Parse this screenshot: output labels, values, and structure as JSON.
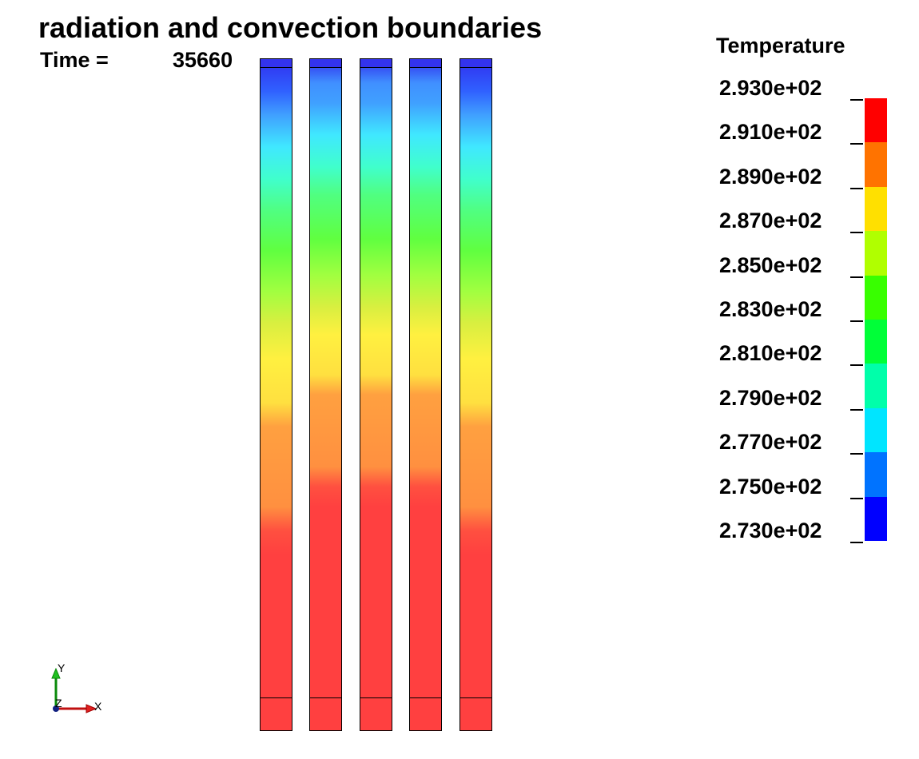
{
  "title": "radiation and convection boundaries",
  "time": {
    "label": "Time =",
    "value": "35660"
  },
  "legend": {
    "title": "Temperature",
    "labels": [
      "2.930e+02",
      "2.910e+02",
      "2.890e+02",
      "2.870e+02",
      "2.850e+02",
      "2.830e+02",
      "2.810e+02",
      "2.790e+02",
      "2.770e+02",
      "2.750e+02",
      "2.730e+02"
    ],
    "colors": [
      "#ff0000",
      "#ff7300",
      "#ffe000",
      "#b0ff00",
      "#38ff00",
      "#00ff38",
      "#00ffaa",
      "#00e5ff",
      "#0073ff",
      "#0000ff"
    ]
  },
  "axes": {
    "x": "X",
    "y": "Y",
    "z": "Z"
  },
  "columns": [
    {
      "id": "col-1"
    },
    {
      "id": "col-2"
    },
    {
      "id": "col-3"
    },
    {
      "id": "col-4"
    },
    {
      "id": "col-5"
    }
  ]
}
